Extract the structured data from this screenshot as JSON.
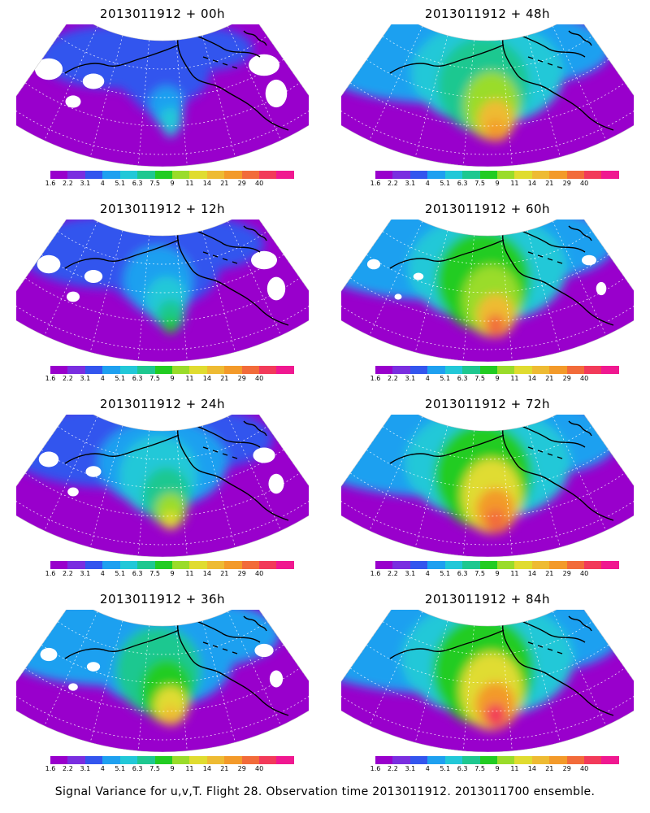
{
  "footer": "Signal Variance for u,v,T. Flight 28. Observation time 2013011912. 2013011700 ensemble.",
  "colorbar": {
    "labels": [
      "1.6",
      "2.2",
      "3.1",
      "4",
      "5.1",
      "6.3",
      "7.5",
      "9",
      "11",
      "14",
      "21",
      "29",
      "40"
    ],
    "colors": [
      "#9900cc",
      "#7a2ee0",
      "#3355ee",
      "#1ea0f0",
      "#22c8d8",
      "#1ec890",
      "#22cc22",
      "#9adc2a",
      "#e0dc30",
      "#eebb33",
      "#f39a2a",
      "#f26b3a",
      "#f23a5a",
      "#f01890"
    ]
  },
  "panels": [
    {
      "title": "2013011912 + 00h",
      "forecast_hour": 0,
      "intensity": 0.35,
      "has_gaps": true
    },
    {
      "title": "2013011912 + 12h",
      "forecast_hour": 12,
      "intensity": 0.5,
      "has_gaps": true
    },
    {
      "title": "2013011912 + 24h",
      "forecast_hour": 24,
      "intensity": 0.62,
      "has_gaps": true
    },
    {
      "title": "2013011912 + 36h",
      "forecast_hour": 36,
      "intensity": 0.72,
      "has_gaps": true
    },
    {
      "title": "2013011912 + 48h",
      "forecast_hour": 48,
      "intensity": 0.8,
      "has_gaps": false
    },
    {
      "title": "2013011912 + 60h",
      "forecast_hour": 60,
      "intensity": 0.85,
      "has_gaps": true
    },
    {
      "title": "2013011912 + 72h",
      "forecast_hour": 72,
      "intensity": 0.9,
      "has_gaps": false
    },
    {
      "title": "2013011912 + 84h",
      "forecast_hour": 84,
      "intensity": 0.95,
      "has_gaps": false
    }
  ]
}
